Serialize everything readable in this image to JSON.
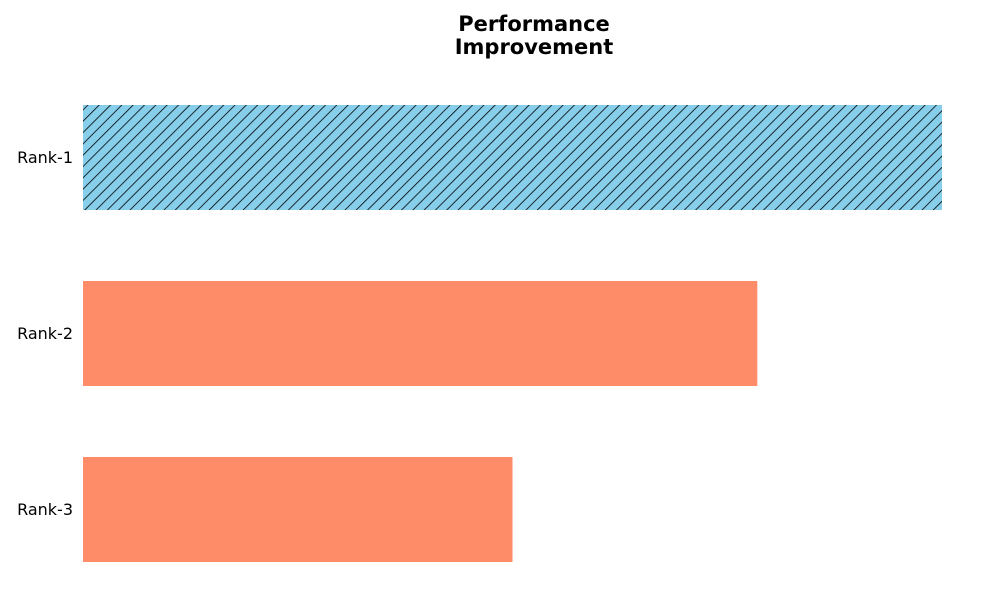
{
  "chart_data": {
    "type": "bar",
    "orientation": "horizontal",
    "title": "Performance\nImprovement",
    "categories": [
      "Rank-1",
      "Rank-2",
      "Rank-3"
    ],
    "values": [
      100,
      78.5,
      50
    ],
    "xlim": [
      0,
      100
    ],
    "xlabel": "",
    "ylabel": "",
    "grid": false,
    "axes_visible": false,
    "legend": "none",
    "highlight": {
      "category": "Rank-1",
      "color": "#87CEEB",
      "pattern": "diagonal-hatch",
      "hatch_color": "#000000"
    },
    "colors": {
      "default_bar": "#FF8C69",
      "highlight_bar": "#87CEEB"
    }
  }
}
